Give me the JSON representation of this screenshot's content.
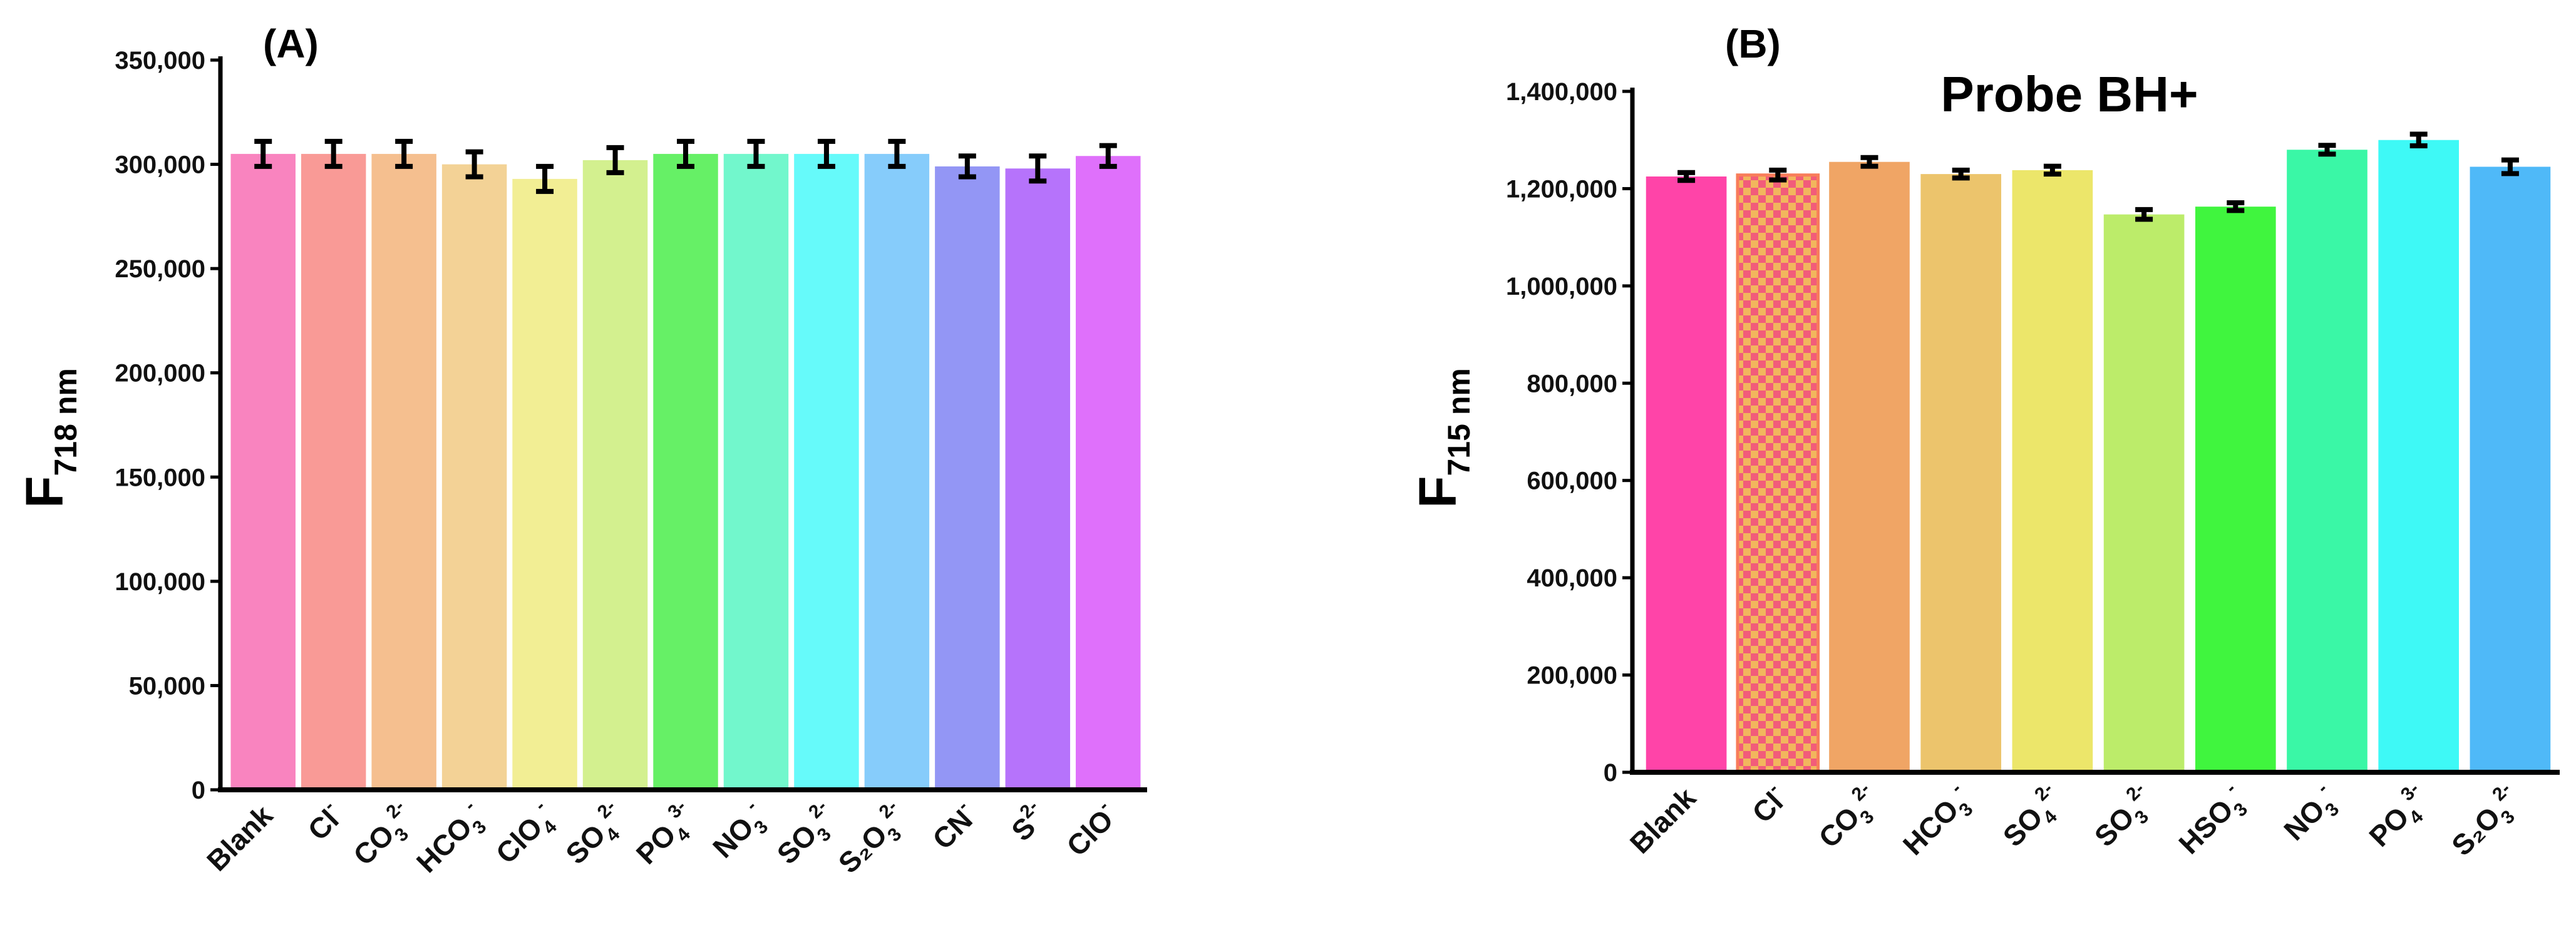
{
  "chart_data": [
    {
      "type": "bar",
      "panel_label": "(A)",
      "title": "",
      "ylabel": {
        "main": "F",
        "sub": "718 nm"
      },
      "ylim": [
        0,
        350000
      ],
      "yticks": [
        "0",
        "50,000",
        "100,000",
        "150,000",
        "200,000",
        "250,000",
        "300,000",
        "350,000"
      ],
      "error_bars": true,
      "categories": [
        {
          "base": "Blank",
          "sub": "",
          "sup": ""
        },
        {
          "base": "Cl",
          "sub": "",
          "sup": "-"
        },
        {
          "base": "CO",
          "sub": "3",
          "sup": "2-"
        },
        {
          "base": "HCO",
          "sub": "3",
          "sup": "-"
        },
        {
          "base": "ClO",
          "sub": "4",
          "sup": "-"
        },
        {
          "base": "SO",
          "sub": "4",
          "sup": "2-"
        },
        {
          "base": "PO",
          "sub": "4",
          "sup": "3-"
        },
        {
          "base": "NO",
          "sub": "3",
          "sup": "-"
        },
        {
          "base": "SO",
          "sub": "3",
          "sup": "2-"
        },
        {
          "base": "S₂O",
          "sub": "3",
          "sup": "2-"
        },
        {
          "base": "CN",
          "sub": "",
          "sup": "-"
        },
        {
          "base": "S",
          "sub": "",
          "sup": "2-"
        },
        {
          "base": "ClO",
          "sub": "",
          "sup": "-"
        }
      ],
      "values": [
        305000,
        305000,
        305000,
        300000,
        293000,
        302000,
        305000,
        305000,
        305000,
        305000,
        299000,
        298000,
        304000
      ],
      "errors": [
        6000,
        6000,
        6000,
        6000,
        6000,
        6000,
        6000,
        6000,
        6000,
        6000,
        5000,
        6000,
        5000
      ],
      "colors": [
        "#f984bf",
        "#f99a96",
        "#f5bf8f",
        "#f3d296",
        "#f2ee94",
        "#d3f08f",
        "#66f066",
        "#72f7cc",
        "#66fafa",
        "#86ccfb",
        "#9396f5",
        "#b673fb",
        "#df70fb"
      ]
    },
    {
      "type": "bar",
      "panel_label": "(B)",
      "title": "Probe BH+",
      "ylabel": {
        "main": "F",
        "sub": "715 nm"
      },
      "ylim": [
        0,
        1400000
      ],
      "yticks": [
        "0",
        "200,000",
        "400,000",
        "600,000",
        "800,000",
        "1,000,000",
        "1,200,000",
        "1,400,000"
      ],
      "error_bars": true,
      "categories": [
        {
          "base": "Blank",
          "sub": "",
          "sup": ""
        },
        {
          "base": "Cl",
          "sub": "",
          "sup": "-"
        },
        {
          "base": "CO",
          "sub": "3",
          "sup": "2-"
        },
        {
          "base": "HCO",
          "sub": "3",
          "sup": "-"
        },
        {
          "base": "SO",
          "sub": "4",
          "sup": "2-"
        },
        {
          "base": "SO",
          "sub": "3",
          "sup": "2-"
        },
        {
          "base": "HSO",
          "sub": "3",
          "sup": "-"
        },
        {
          "base": "NO",
          "sub": "3",
          "sup": "-"
        },
        {
          "base": "PO",
          "sub": "4",
          "sup": "3-"
        },
        {
          "base": "S₂O",
          "sub": "3",
          "sup": "2-"
        }
      ],
      "values": [
        1225000,
        1228000,
        1255000,
        1230000,
        1238000,
        1147000,
        1163000,
        1280000,
        1300000,
        1245000
      ],
      "errors": [
        8000,
        10000,
        9000,
        8000,
        8000,
        10000,
        8000,
        9000,
        12000,
        14000
      ],
      "colors": [
        "#ff44a8",
        "#f87d5a",
        "#f0a565",
        "#ecc46c",
        "#ece66a",
        "#bcec6a",
        "#40f53e",
        "#3af7a6",
        "#3ef9f6",
        "#4fb9f8"
      ],
      "patterned": [
        false,
        true,
        false,
        false,
        false,
        false,
        false,
        false,
        false,
        false
      ]
    }
  ]
}
